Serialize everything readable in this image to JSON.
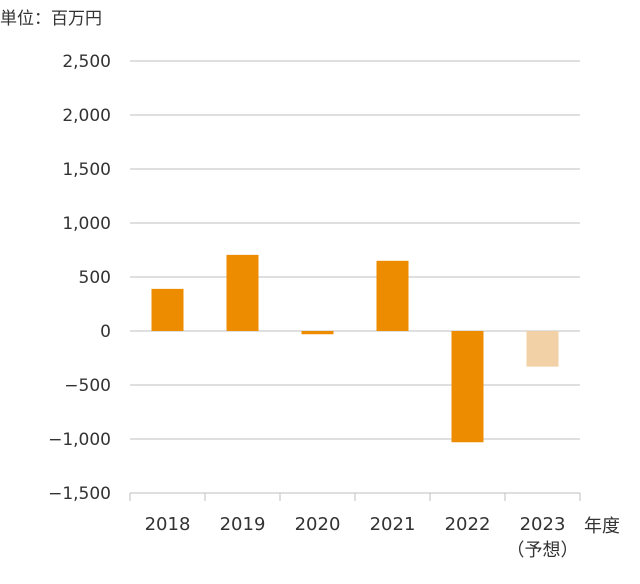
{
  "unit_label": "単位：百万円",
  "x_axis_title": "年度",
  "chart_data": {
    "type": "bar",
    "title": "",
    "ylabel": "単位：百万円",
    "xlabel": "年度",
    "ylim": [
      -1500,
      2500
    ],
    "yticks": [
      2500,
      2000,
      1500,
      1000,
      500,
      0,
      -500,
      -1000,
      -1500
    ],
    "ytick_labels": [
      "2,500",
      "2,000",
      "1,500",
      "1,000",
      "500",
      "0",
      "−500",
      "−1,000",
      "−1,500"
    ],
    "categories": [
      "2018",
      "2019",
      "2020",
      "2021",
      "2022",
      "2023"
    ],
    "category_sublabels": [
      "",
      "",
      "",
      "",
      "",
      "（予想）"
    ],
    "values": [
      390,
      705,
      -30,
      650,
      -1030,
      -330
    ],
    "bar_colors": [
      "#EE8C00",
      "#EE8C00",
      "#EE8C00",
      "#EE8C00",
      "#EE8C00",
      "#F3D1A6"
    ],
    "grid": true,
    "grid_color": "#BFBFBF",
    "legend": "none"
  }
}
